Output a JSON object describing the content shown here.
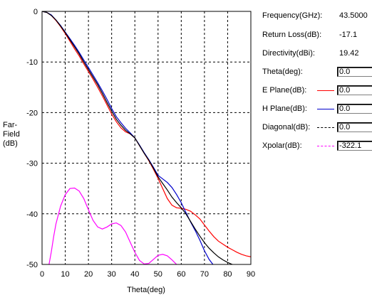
{
  "info": {
    "frequency_label": "Frequency(GHz):",
    "frequency_value": "43.5000",
    "return_loss_label": "Return Loss(dB):",
    "return_loss_value": "-17.1",
    "directivity_label": "Directivity(dBi):",
    "directivity_value": "19.42",
    "theta_label": "Theta(deg):",
    "theta_value": "0.0",
    "eplane_label": "E Plane(dB):",
    "eplane_value": "0.0",
    "hplane_label": "H Plane(dB):",
    "hplane_value": "0.0",
    "diagonal_label": "Diagonal(dB):",
    "diagonal_value": "0.0",
    "xpolar_label": "Xpolar(dB):",
    "xpolar_value": "-322.1"
  },
  "chart_data": {
    "type": "line",
    "xlabel": "Theta(deg)",
    "ylabel_lines": [
      "Far-",
      "Field",
      "(dB)"
    ],
    "xlim": [
      0,
      90
    ],
    "ylim": [
      -50,
      0
    ],
    "xticks": [
      "0",
      "10",
      "20",
      "30",
      "40",
      "50",
      "60",
      "70",
      "80",
      "90"
    ],
    "yticks": [
      "0",
      "-10",
      "-20",
      "-30",
      "-40",
      "-50"
    ],
    "grid": true,
    "series": [
      {
        "name": "E Plane(dB)",
        "color": "#ff0000",
        "dash": "solid",
        "x": [
          0,
          2,
          4,
          6,
          8,
          10,
          12,
          14,
          16,
          18,
          20,
          22,
          24,
          26,
          28,
          30,
          32,
          34,
          36,
          38,
          40,
          42,
          44,
          46,
          48,
          50,
          52,
          54,
          56,
          58,
          60,
          62,
          64,
          66,
          68,
          70,
          72,
          74,
          76,
          78,
          80,
          82,
          84,
          86,
          88,
          90
        ],
        "y": [
          0,
          -0.2,
          -0.8,
          -1.8,
          -3.0,
          -4.4,
          -5.9,
          -7.4,
          -8.8,
          -10.4,
          -11.9,
          -13.4,
          -15.0,
          -16.7,
          -18.5,
          -20.3,
          -21.8,
          -23.0,
          -23.8,
          -24.2,
          -25.0,
          -26.5,
          -28.0,
          -29.5,
          -31.2,
          -33.0,
          -35.0,
          -37.0,
          -38.3,
          -38.8,
          -38.9,
          -39.1,
          -39.5,
          -40.2,
          -41.0,
          -42.2,
          -43.4,
          -44.5,
          -45.4,
          -46.0,
          -46.6,
          -47.1,
          -47.6,
          -48.0,
          -48.3,
          -48.5
        ]
      },
      {
        "name": "H Plane(dB)",
        "color": "#0000cc",
        "dash": "solid",
        "x": [
          0,
          2,
          4,
          6,
          8,
          10,
          12,
          14,
          16,
          18,
          20,
          22,
          24,
          26,
          28,
          30,
          32,
          34,
          36,
          38,
          40,
          42,
          44,
          46,
          48,
          50,
          52,
          54,
          56,
          58,
          60,
          62,
          64,
          66,
          68,
          70,
          72,
          74,
          76
        ],
        "y": [
          0,
          -0.2,
          -0.7,
          -1.7,
          -2.8,
          -4.1,
          -5.4,
          -6.7,
          -8.1,
          -9.6,
          -11.1,
          -12.6,
          -14.1,
          -15.7,
          -17.4,
          -19.2,
          -20.8,
          -22.0,
          -23.1,
          -24.0,
          -25.0,
          -26.4,
          -27.9,
          -29.3,
          -30.8,
          -32.4,
          -33.1,
          -33.8,
          -34.8,
          -36.2,
          -37.8,
          -39.7,
          -41.6,
          -43.3,
          -45.2,
          -47.3,
          -49.0,
          -50.2,
          -51.0
        ]
      },
      {
        "name": "Diagonal(dB)",
        "color": "#000000",
        "dash": "solid",
        "x": [
          0,
          2,
          4,
          6,
          8,
          10,
          12,
          14,
          16,
          18,
          20,
          22,
          24,
          26,
          28,
          30,
          32,
          34,
          36,
          38,
          40,
          42,
          44,
          46,
          48,
          50,
          52,
          54,
          56,
          58,
          60,
          62,
          64,
          66,
          68,
          70,
          72,
          74,
          76,
          78,
          80,
          82,
          84,
          86,
          88
        ],
        "y": [
          0,
          -0.2,
          -0.8,
          -1.7,
          -2.9,
          -4.2,
          -5.6,
          -7.0,
          -8.4,
          -10.0,
          -11.5,
          -13.0,
          -14.5,
          -16.2,
          -18.0,
          -19.7,
          -21.3,
          -22.5,
          -23.5,
          -24.2,
          -25.0,
          -26.5,
          -28.0,
          -29.4,
          -31.0,
          -32.7,
          -34.0,
          -35.3,
          -36.7,
          -37.8,
          -38.8,
          -40.0,
          -41.5,
          -43.0,
          -44.4,
          -45.7,
          -46.8,
          -47.7,
          -48.5,
          -49.1,
          -49.6,
          -50.0,
          -50.3,
          -50.5,
          -50.6
        ]
      },
      {
        "name": "Xpolar(dB)",
        "color": "#ff00ff",
        "dash": "solid",
        "x": [
          3,
          4,
          5,
          6,
          8,
          10,
          12,
          14,
          16,
          18,
          20,
          22,
          24,
          26,
          28,
          30,
          32,
          34,
          36,
          38,
          40,
          42,
          44,
          46,
          48,
          50,
          52,
          54,
          56,
          58
        ],
        "y": [
          -50,
          -47.5,
          -44.5,
          -42,
          -38.5,
          -36.2,
          -35.0,
          -34.9,
          -35.5,
          -37.0,
          -39.2,
          -41.3,
          -42.6,
          -43.0,
          -42.6,
          -42.0,
          -41.8,
          -42.3,
          -43.6,
          -45.6,
          -47.6,
          -49.2,
          -49.9,
          -49.8,
          -49.0,
          -48.2,
          -48.0,
          -48.3,
          -49.1,
          -50
        ]
      }
    ]
  }
}
